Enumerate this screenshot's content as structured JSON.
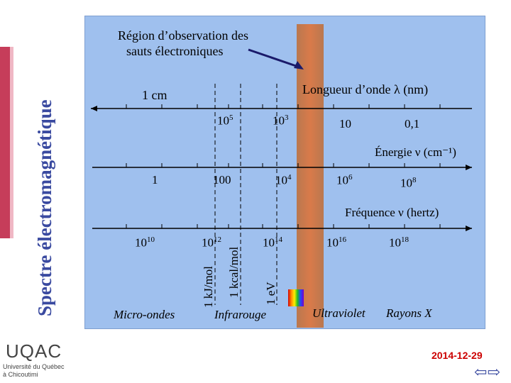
{
  "side_title": "Spectre électromagnétique",
  "observation_label_line1": "Région d’observation des",
  "observation_label_line2": "sauts électroniques",
  "wavelength": {
    "title": "Longueur d’onde λ (nm)",
    "left_label": "1 cm",
    "ticks": [
      "10",
      "0,1"
    ],
    "ticks_exp": [
      {
        "base": "10",
        "exp": "5"
      },
      {
        "base": "10",
        "exp": "3"
      }
    ]
  },
  "energy": {
    "title": "Énergie ν (cm⁻¹)",
    "ticks": [
      "1",
      "100"
    ],
    "ticks_exp": [
      {
        "base": "10",
        "exp": "4"
      },
      {
        "base": "10",
        "exp": "6"
      },
      {
        "base": "10",
        "exp": "8"
      }
    ]
  },
  "frequency": {
    "title": "Fréquence ν (hertz)",
    "ticks_exp": [
      {
        "base": "10",
        "exp": "10"
      },
      {
        "base": "10",
        "exp": "12"
      },
      {
        "base": "10",
        "exp": "14"
      },
      {
        "base": "10",
        "exp": "16"
      },
      {
        "base": "10",
        "exp": "18"
      }
    ]
  },
  "energy_markers": [
    "1 kJ/mol",
    "1 kcal/mol",
    "1 eV"
  ],
  "regions": [
    "Micro-ondes",
    "Infrarouge",
    "Ultraviolet",
    "Rayons X"
  ],
  "logo": {
    "name": "UQAC",
    "line1": "Université du Québec",
    "line2": "à Chicoutimi"
  },
  "date": "2014-12-29",
  "colors": {
    "panel": "#9fc0ee",
    "band": "#c96b4a",
    "accent": "#3a4aa0",
    "date": "#cc0000"
  }
}
